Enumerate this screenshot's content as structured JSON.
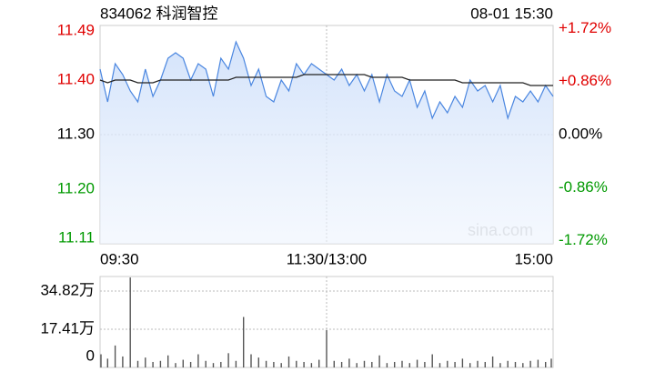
{
  "chart_data": [
    {
      "type": "line",
      "title": "834062 科润智控",
      "timestamp": "08-01 15:30",
      "watermark": "sina.com",
      "x": [
        0,
        4,
        8,
        12,
        16,
        20,
        24,
        28,
        32,
        36,
        40,
        44,
        48,
        52,
        56,
        60,
        64,
        68,
        72,
        76,
        80,
        84,
        88,
        92,
        96,
        100,
        104,
        108,
        112,
        116,
        120,
        124,
        128,
        132,
        136,
        140,
        144,
        148,
        152,
        156,
        160,
        164,
        168,
        172,
        176,
        180,
        184,
        188,
        192,
        196,
        200,
        204,
        208,
        212,
        216,
        220,
        224,
        228,
        232,
        236,
        240
      ],
      "xlim": [
        0,
        240
      ],
      "xticks": [
        {
          "value": 0,
          "label": "09:30"
        },
        {
          "value": 120,
          "label": "11:30/13:00"
        },
        {
          "value": 240,
          "label": "15:00"
        }
      ],
      "ylim": [
        11.1,
        11.5
      ],
      "yticks": [
        11.49,
        {
          "value": 11.4,
          "label": "11.40"
        },
        {
          "value": 11.3,
          "label": "11.30"
        },
        {
          "value": 11.2,
          "label": "11.20"
        },
        11.11
      ],
      "y2lim": [
        -1.77,
        1.77
      ],
      "y2ticks": [
        {
          "value": 1.72,
          "label": "+1.72%"
        },
        {
          "value": 0.86,
          "label": "+0.86%"
        },
        {
          "value": 0,
          "label": "0.00%"
        },
        {
          "value": -0.86,
          "label": "-0.86%"
        },
        {
          "value": -1.72,
          "label": "-1.72%"
        }
      ],
      "up_color": "#e00000",
      "down_color": "#009900",
      "series": [
        {
          "color": "#4a86e0",
          "values": [
            11.42,
            11.36,
            11.43,
            11.41,
            11.38,
            11.36,
            11.42,
            11.37,
            11.4,
            11.44,
            11.45,
            11.44,
            11.4,
            11.43,
            11.42,
            11.37,
            11.44,
            11.42,
            11.47,
            11.44,
            11.39,
            11.42,
            11.37,
            11.36,
            11.4,
            11.38,
            11.43,
            11.41,
            11.43,
            11.42,
            11.41,
            11.4,
            11.42,
            11.39,
            11.41,
            11.38,
            11.41,
            11.36,
            11.41,
            11.38,
            11.37,
            11.4,
            11.35,
            11.38,
            11.33,
            11.36,
            11.34,
            11.37,
            11.35,
            11.4,
            11.38,
            11.39,
            11.36,
            11.39,
            11.33,
            11.37,
            11.36,
            11.38,
            11.36,
            11.39,
            11.37
          ]
        },
        {
          "color": "#222222",
          "values": [
            11.4,
            11.395,
            11.4,
            11.4,
            11.4,
            11.395,
            11.395,
            11.395,
            11.4,
            11.4,
            11.4,
            11.4,
            11.4,
            11.4,
            11.4,
            11.4,
            11.4,
            11.4,
            11.405,
            11.405,
            11.405,
            11.405,
            11.405,
            11.405,
            11.405,
            11.405,
            11.405,
            11.41,
            11.41,
            11.41,
            11.41,
            11.41,
            11.41,
            11.41,
            11.41,
            11.41,
            11.405,
            11.405,
            11.405,
            11.405,
            11.405,
            11.4,
            11.4,
            11.4,
            11.4,
            11.4,
            11.4,
            11.4,
            11.395,
            11.395,
            11.395,
            11.395,
            11.395,
            11.395,
            11.395,
            11.395,
            11.395,
            11.39,
            11.39,
            11.39,
            11.39
          ]
        }
      ]
    },
    {
      "type": "bar",
      "x": [
        0,
        4,
        8,
        12,
        16,
        20,
        24,
        28,
        32,
        36,
        40,
        44,
        48,
        52,
        56,
        60,
        64,
        68,
        72,
        76,
        80,
        84,
        88,
        92,
        96,
        100,
        104,
        108,
        112,
        116,
        120,
        124,
        128,
        132,
        136,
        140,
        144,
        148,
        152,
        156,
        160,
        164,
        168,
        172,
        176,
        180,
        184,
        188,
        192,
        196,
        200,
        204,
        208,
        212,
        216,
        220,
        224,
        228,
        232,
        236,
        240
      ],
      "xlim": [
        0,
        240
      ],
      "ylim": [
        0,
        414500
      ],
      "yticks": [
        {
          "value": 348200,
          "label": "34.82万"
        },
        {
          "value": 174100,
          "label": "17.41万"
        },
        0
      ],
      "color": "#555555",
      "values": [
        60000,
        40000,
        100000,
        50000,
        410000,
        30000,
        45000,
        25000,
        30000,
        55000,
        20000,
        35000,
        25000,
        60000,
        30000,
        20000,
        25000,
        65000,
        30000,
        230000,
        60000,
        45000,
        30000,
        25000,
        20000,
        50000,
        30000,
        25000,
        20000,
        35000,
        170000,
        30000,
        25000,
        40000,
        20000,
        30000,
        25000,
        55000,
        20000,
        25000,
        30000,
        20000,
        35000,
        25000,
        60000,
        20000,
        30000,
        25000,
        40000,
        20000,
        30000,
        25000,
        50000,
        20000,
        30000,
        25000,
        20000,
        30000,
        35000,
        25000,
        40000
      ]
    }
  ]
}
